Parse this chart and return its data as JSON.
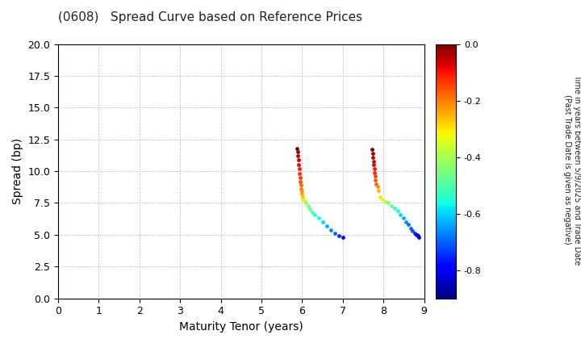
{
  "title": "(0608)   Spread Curve based on Reference Prices",
  "xlabel": "Maturity Tenor (years)",
  "ylabel": "Spread (bp)",
  "colorbar_label_line1": "Time in years between 5/9/2025 and Trade Date",
  "colorbar_label_line2": "(Past Trade Date is given as negative)",
  "xlim": [
    0,
    9
  ],
  "ylim": [
    0.0,
    20.0
  ],
  "xticks": [
    0,
    1,
    2,
    3,
    4,
    5,
    6,
    7,
    8,
    9
  ],
  "yticks": [
    0.0,
    2.5,
    5.0,
    7.5,
    10.0,
    12.5,
    15.0,
    17.5,
    20.0
  ],
  "cmap": "jet",
  "vmin": -0.9,
  "vmax": 0.0,
  "colorbar_ticks": [
    0.0,
    -0.2,
    -0.4,
    -0.6,
    -0.8
  ],
  "cluster1": {
    "maturity": [
      5.88,
      5.89,
      5.9,
      5.91,
      5.92,
      5.93,
      5.94,
      5.95,
      5.96,
      5.97,
      5.98,
      5.99,
      6.0,
      6.01,
      6.02,
      6.03,
      6.05,
      6.08,
      6.1,
      6.15,
      6.2,
      6.25,
      6.3,
      6.4,
      6.5,
      6.6,
      6.7,
      6.8,
      6.9,
      7.0
    ],
    "spread": [
      11.8,
      11.5,
      11.2,
      10.9,
      10.5,
      10.2,
      9.8,
      9.5,
      9.2,
      8.9,
      8.6,
      8.4,
      8.2,
      8.0,
      7.8,
      7.8,
      7.7,
      7.6,
      7.5,
      7.3,
      7.0,
      6.8,
      6.6,
      6.3,
      6.0,
      5.7,
      5.4,
      5.1,
      4.9,
      4.8
    ],
    "time": [
      0.0,
      -0.02,
      -0.04,
      -0.06,
      -0.08,
      -0.1,
      -0.12,
      -0.14,
      -0.16,
      -0.18,
      -0.2,
      -0.22,
      -0.24,
      -0.26,
      -0.28,
      -0.3,
      -0.35,
      -0.4,
      -0.42,
      -0.45,
      -0.48,
      -0.5,
      -0.53,
      -0.56,
      -0.6,
      -0.63,
      -0.67,
      -0.7,
      -0.75,
      -0.8
    ]
  },
  "cluster2": {
    "maturity": [
      7.72,
      7.73,
      7.74,
      7.75,
      7.76,
      7.77,
      7.78,
      7.79,
      7.8,
      7.82,
      7.85,
      7.88,
      7.92,
      7.98,
      8.05,
      8.12,
      8.2,
      8.28,
      8.35,
      8.42,
      8.5,
      8.56,
      8.62,
      8.68,
      8.72,
      8.76,
      8.8,
      8.82,
      8.84,
      8.86
    ],
    "spread": [
      11.7,
      11.4,
      11.1,
      10.8,
      10.5,
      10.2,
      9.9,
      9.6,
      9.3,
      9.0,
      8.8,
      8.5,
      8.0,
      7.8,
      7.6,
      7.5,
      7.3,
      7.1,
      6.9,
      6.6,
      6.3,
      6.0,
      5.8,
      5.5,
      5.3,
      5.1,
      5.0,
      5.0,
      4.9,
      4.8
    ],
    "time": [
      0.0,
      -0.02,
      -0.04,
      -0.06,
      -0.08,
      -0.1,
      -0.12,
      -0.14,
      -0.16,
      -0.18,
      -0.22,
      -0.26,
      -0.3,
      -0.35,
      -0.4,
      -0.44,
      -0.48,
      -0.52,
      -0.56,
      -0.6,
      -0.63,
      -0.66,
      -0.68,
      -0.7,
      -0.72,
      -0.75,
      -0.78,
      -0.8,
      -0.82,
      -0.85
    ]
  },
  "marker_size": 12,
  "background_color": "#ffffff",
  "grid_color": "#aaaaaa",
  "grid_style": "dotted"
}
